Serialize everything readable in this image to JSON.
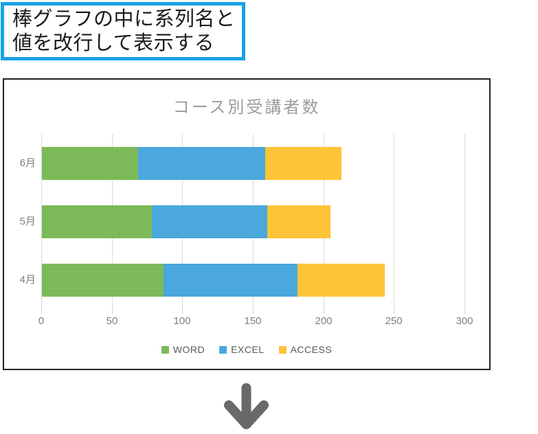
{
  "header": {
    "line1": "棒グラフの中に系列名と",
    "line2": "値を改行して表示する",
    "border_color": "#18A0E6"
  },
  "chart_data": {
    "type": "bar",
    "orientation": "horizontal",
    "stacked": true,
    "title": "コース別受講者数",
    "categories": [
      "6月",
      "5月",
      "4月"
    ],
    "series": [
      {
        "name": "WORD",
        "color": "#7CBA59",
        "values": [
          68,
          78,
          86
        ]
      },
      {
        "name": "EXCEL",
        "color": "#4BA8DC",
        "values": [
          90,
          82,
          95
        ]
      },
      {
        "name": "ACCESS",
        "color": "#FDC437",
        "values": [
          54,
          45,
          62
        ]
      }
    ],
    "xlim": [
      0,
      300
    ],
    "x_ticks": [
      0,
      50,
      100,
      150,
      200,
      250,
      300
    ],
    "grid": true,
    "legend_position": "bottom",
    "colors": {
      "gridline": "#DADADA",
      "axis_text": "#808080",
      "title_text": "#9C9C9C",
      "legend_text": "#595959",
      "chart_border": "#222222"
    }
  },
  "arrow": {
    "direction": "down",
    "color": "#696969"
  }
}
